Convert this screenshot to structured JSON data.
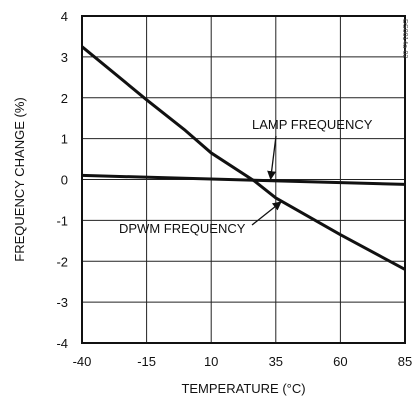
{
  "chart_data": {
    "type": "line",
    "title": "",
    "xlabel": "TEMPERATURE (°C)",
    "ylabel": "FREQUENCY CHANGE (%)",
    "xlim": [
      -40,
      85
    ],
    "ylim": [
      -4,
      4
    ],
    "xticks": [
      -40,
      -15,
      10,
      35,
      60,
      85
    ],
    "yticks": [
      4,
      3,
      2,
      1,
      0,
      -1,
      -2,
      -3,
      -4
    ],
    "grid": true,
    "corner_stamp": "DS0014a-02",
    "series": [
      {
        "name": "LAMP FREQUENCY",
        "x": [
          -40,
          85
        ],
        "y": [
          0.1,
          -0.12
        ]
      },
      {
        "name": "DPWM FREQUENCY",
        "x": [
          -40,
          -15,
          0,
          10,
          27,
          35,
          60,
          85
        ],
        "y": [
          3.25,
          1.95,
          1.2,
          0.65,
          -0.05,
          -0.45,
          -1.35,
          -2.2
        ]
      }
    ],
    "annotations": [
      {
        "text": "LAMP FREQUENCY",
        "series": "LAMP FREQUENCY",
        "points_to": [
          33,
          0.01
        ]
      },
      {
        "text": "DPWM FREQUENCY",
        "series": "DPWM FREQUENCY",
        "points_to": [
          37,
          -0.55
        ]
      }
    ],
    "line_color": "#111111"
  }
}
